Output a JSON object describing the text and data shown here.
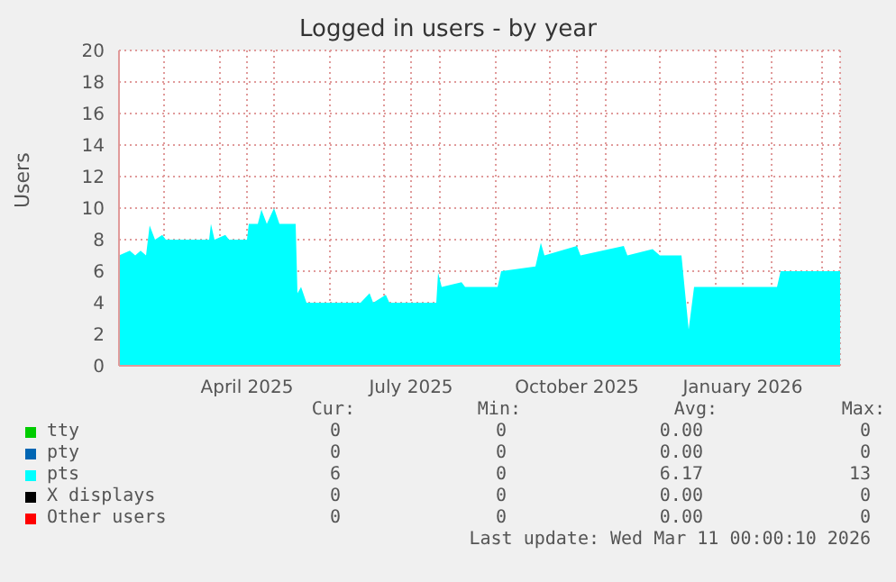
{
  "chart_data": {
    "type": "area",
    "title": "Logged in users - by year",
    "ylabel": "Users",
    "grid": true,
    "legend": "bottom",
    "xlim": [
      "2025-02-04",
      "2026-03-11"
    ],
    "ylim": [
      0,
      20
    ],
    "yticks": [
      0,
      2,
      4,
      6,
      8,
      10,
      12,
      14,
      16,
      18,
      20
    ],
    "xticks": [
      {
        "value": "2025-03-01",
        "label": null
      },
      {
        "value": "2025-04-01",
        "label": null
      },
      {
        "value": "2025-04-16",
        "label": "April 2025"
      },
      {
        "value": "2025-05-01",
        "label": null
      },
      {
        "value": "2025-06-01",
        "label": null
      },
      {
        "value": "2025-07-01",
        "label": null
      },
      {
        "value": "2025-07-16",
        "label": "July 2025"
      },
      {
        "value": "2025-08-01",
        "label": null
      },
      {
        "value": "2025-09-01",
        "label": null
      },
      {
        "value": "2025-10-01",
        "label": null
      },
      {
        "value": "2025-10-16",
        "label": "October 2025"
      },
      {
        "value": "2025-11-01",
        "label": null
      },
      {
        "value": "2025-12-01",
        "label": null
      },
      {
        "value": "2026-01-01",
        "label": null
      },
      {
        "value": "2026-01-16",
        "label": "January 2026"
      },
      {
        "value": "2026-02-01",
        "label": null
      },
      {
        "value": "2026-03-01",
        "label": null
      }
    ],
    "x": [
      "2025-02-04",
      "2025-02-10",
      "2025-02-13",
      "2025-02-16",
      "2025-02-19",
      "2025-02-21",
      "2025-02-24",
      "2025-02-28",
      "2025-03-02",
      "2025-03-26",
      "2025-03-27",
      "2025-03-29",
      "2025-04-04",
      "2025-04-06",
      "2025-04-16",
      "2025-04-17",
      "2025-04-22",
      "2025-04-24",
      "2025-04-27",
      "2025-05-01",
      "2025-05-04",
      "2025-05-13",
      "2025-05-14",
      "2025-05-16",
      "2025-05-19",
      "2025-06-18",
      "2025-06-23",
      "2025-06-25",
      "2025-07-02",
      "2025-07-04",
      "2025-07-30",
      "2025-07-31",
      "2025-08-02",
      "2025-08-13",
      "2025-08-15",
      "2025-09-02",
      "2025-09-04",
      "2025-09-23",
      "2025-09-26",
      "2025-09-28",
      "2025-10-16",
      "2025-10-18",
      "2025-11-11",
      "2025-11-13",
      "2025-11-27",
      "2025-12-01",
      "2025-12-13",
      "2025-12-17",
      "2025-12-20",
      "2026-02-04",
      "2026-02-06",
      "2026-03-11"
    ],
    "series": [
      {
        "name": "tty",
        "color": "#00cc00",
        "values": [
          null,
          null,
          null,
          null,
          null,
          null,
          null,
          null,
          null,
          null,
          null,
          null,
          null,
          null,
          null,
          null,
          null,
          null,
          null,
          null,
          null,
          null,
          null,
          null,
          null,
          null,
          null,
          null,
          null,
          null,
          null,
          null,
          null,
          null,
          null,
          null,
          null,
          null,
          null,
          null,
          null,
          null,
          null,
          null,
          null,
          null,
          null,
          null,
          null,
          null,
          null,
          null
        ]
      },
      {
        "name": "pty",
        "color": "#0066b3",
        "values": [
          null,
          null,
          null,
          null,
          null,
          null,
          null,
          null,
          null,
          null,
          null,
          null,
          null,
          null,
          null,
          null,
          null,
          null,
          null,
          null,
          null,
          null,
          null,
          null,
          null,
          null,
          null,
          null,
          null,
          null,
          null,
          null,
          null,
          null,
          null,
          null,
          null,
          null,
          null,
          null,
          null,
          null,
          null,
          null,
          null,
          null,
          null,
          null,
          null,
          null,
          null,
          null
        ]
      },
      {
        "name": "pts",
        "color": "#00ffff",
        "values": [
          7.0,
          7.3,
          7.0,
          7.3,
          7.0,
          8.9,
          8.0,
          8.3,
          8.0,
          8.0,
          9.0,
          8.0,
          8.3,
          8.0,
          8.0,
          9.0,
          9.0,
          9.9,
          9.0,
          10.0,
          9.0,
          9.0,
          4.6,
          5.0,
          4.0,
          4.0,
          4.6,
          4.0,
          4.5,
          4.0,
          4.0,
          5.9,
          5.0,
          5.3,
          5.0,
          5.0,
          6.0,
          6.3,
          7.8,
          7.0,
          7.6,
          7.0,
          7.6,
          7.0,
          7.4,
          7.0,
          7.0,
          2.3,
          5.0,
          5.0,
          6.0,
          6.0
        ]
      },
      {
        "name": "X displays",
        "color": "#000000",
        "values": [
          null,
          null,
          null,
          null,
          null,
          null,
          null,
          null,
          null,
          null,
          null,
          null,
          null,
          null,
          null,
          null,
          null,
          null,
          null,
          null,
          null,
          null,
          null,
          null,
          null,
          null,
          null,
          null,
          null,
          null,
          null,
          null,
          null,
          null,
          null,
          null,
          null,
          null,
          null,
          null,
          null,
          null,
          null,
          null,
          null,
          null,
          null,
          null,
          null,
          null,
          null,
          null
        ]
      },
      {
        "name": "Other users",
        "color": "#ff0000",
        "values": [
          null,
          null,
          null,
          null,
          null,
          null,
          null,
          null,
          null,
          null,
          null,
          null,
          null,
          null,
          null,
          null,
          null,
          null,
          null,
          null,
          null,
          null,
          null,
          null,
          null,
          null,
          null,
          null,
          null,
          null,
          null,
          null,
          null,
          null,
          null,
          null,
          null,
          null,
          null,
          null,
          null,
          null,
          null,
          null,
          null,
          null,
          null,
          null,
          null,
          null,
          null,
          null
        ]
      }
    ],
    "annotations": [
      "Cur:",
      "Min:",
      "Avg:",
      "Max:",
      "0",
      "0",
      "0.00",
      "0",
      "0",
      "0",
      "0.00",
      "0",
      "6",
      "0",
      "6.17",
      "13",
      "0",
      "0",
      "0.00",
      "0",
      "0",
      "0",
      "0.00",
      "0",
      "Last update: Wed Mar 11 00:00:10 2026"
    ]
  }
}
